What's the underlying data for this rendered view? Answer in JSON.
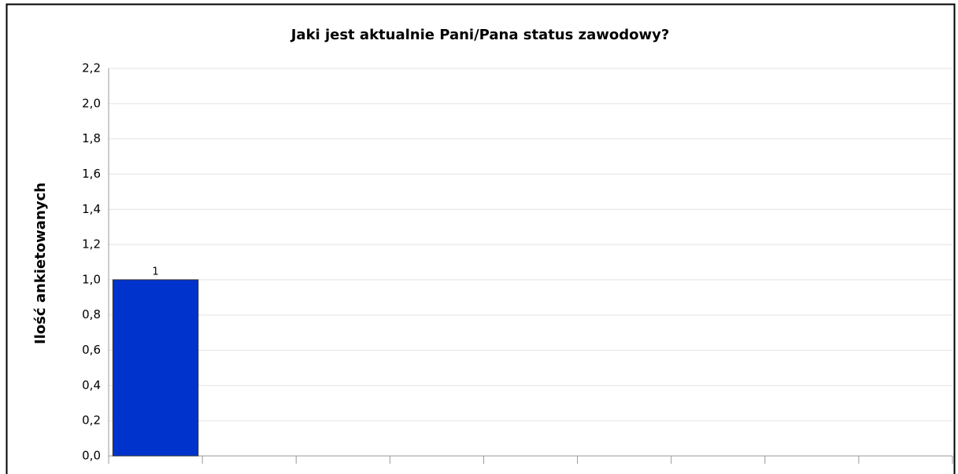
{
  "chart_data": {
    "type": "bar",
    "title": "Jaki jest aktualnie Pani/Pana status zawodowy?",
    "y_label": "Ilość ankietowanych",
    "categories": [
      null,
      null,
      null,
      null,
      null,
      null,
      null,
      null,
      null
    ],
    "values": [
      1,
      null,
      null,
      null,
      null,
      null,
      null,
      null,
      null
    ],
    "color": "#0033cc",
    "ylim": [
      0,
      2.2
    ],
    "yticks": [
      {
        "value": 0,
        "label": "0,0"
      },
      {
        "value": 0.2,
        "label": "0,2"
      },
      {
        "value": 0.4,
        "label": "0,4"
      },
      {
        "value": 0.6,
        "label": "0,6"
      },
      {
        "value": 0.8,
        "label": "0,8"
      },
      {
        "value": 1,
        "label": "1,0"
      },
      {
        "value": 1.2,
        "label": "1,2"
      },
      {
        "value": 1.4,
        "label": "1,4"
      },
      {
        "value": 1.6,
        "label": "1,6"
      },
      {
        "value": 1.8,
        "label": "1,8"
      },
      {
        "value": 2,
        "label": "2,0"
      },
      {
        "value": 2.2,
        "label": "2,2"
      }
    ],
    "grid": true
  }
}
